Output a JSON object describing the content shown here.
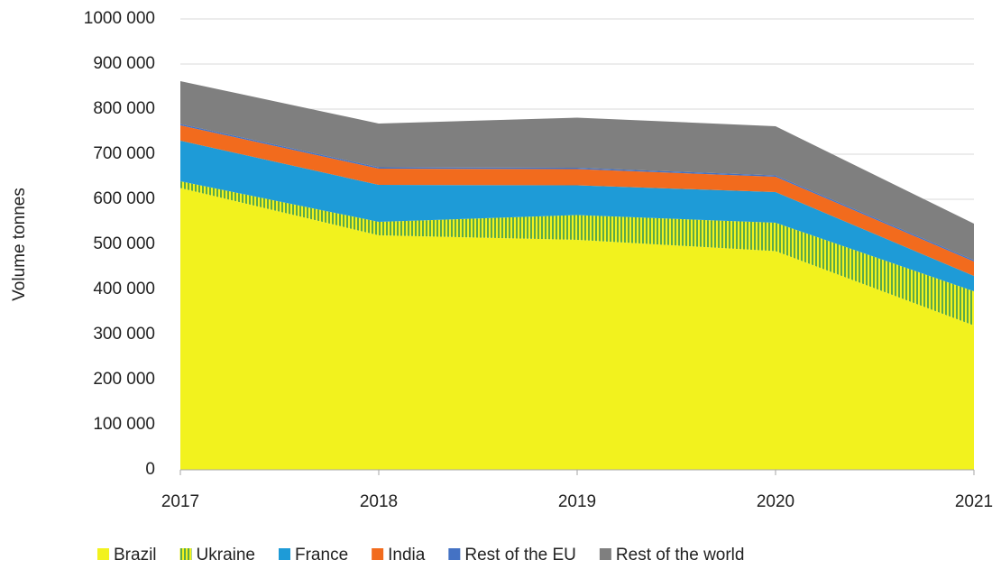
{
  "chart_data": {
    "type": "stacked_area",
    "y_label": "Volume tonnes",
    "categories": [
      "2017",
      "2018",
      "2019",
      "2020",
      "2021"
    ],
    "series": [
      {
        "name": "Brazil",
        "color": "#f2f21e",
        "values": [
          625000,
          520000,
          510000,
          485000,
          320000
        ]
      },
      {
        "name": "Ukraine",
        "color": "#5aaa4a",
        "hatch": true,
        "values": [
          15000,
          30000,
          55000,
          63000,
          76000
        ]
      },
      {
        "name": "France",
        "color": "#1e9bd7",
        "values": [
          90000,
          82000,
          66000,
          68000,
          34000
        ]
      },
      {
        "name": "India",
        "color": "#f26b1d",
        "values": [
          34000,
          36000,
          36000,
          34000,
          32000
        ]
      },
      {
        "name": "Rest of the EU",
        "color": "#4472c4",
        "values": [
          3000,
          3000,
          3000,
          3000,
          3000
        ]
      },
      {
        "name": "Rest of the world",
        "color": "#7f7f7f",
        "values": [
          95000,
          97000,
          111000,
          109000,
          81000
        ]
      }
    ],
    "ylim": [
      0,
      1000000
    ],
    "yticks": [
      0,
      {
        "value": 100000,
        "label": "100 000"
      },
      {
        "value": 200000,
        "label": "200 000"
      },
      {
        "value": 300000,
        "label": "300 000"
      },
      {
        "value": 400000,
        "label": "400 000"
      },
      {
        "value": 500000,
        "label": "500 000"
      },
      {
        "value": 600000,
        "label": "600 000"
      },
      {
        "value": 700000,
        "label": "700 000"
      },
      {
        "value": 800000,
        "label": "800 000"
      },
      {
        "value": 900000,
        "label": "900 000"
      },
      {
        "value": 1000000,
        "label": "1000 000"
      }
    ],
    "grid": true,
    "legend": "bottom"
  }
}
